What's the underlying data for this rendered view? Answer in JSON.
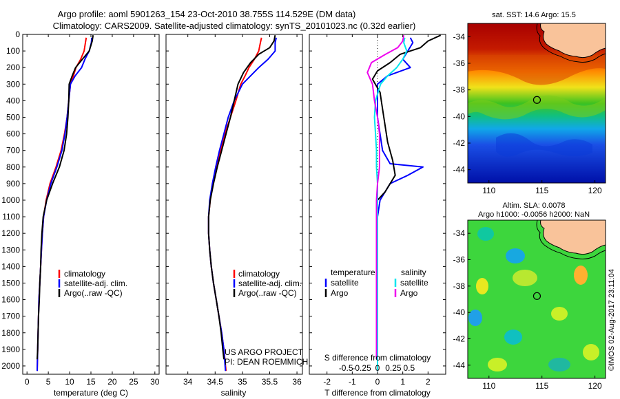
{
  "header": {
    "line1": "Argo profile: aoml 5901263_154 23-Oct-2010 38.755S 114.529E (DM data)",
    "line2": "Climatology: CARS2009. Satellite-adjusted climatology: synTS_20101023.nc (0.32d earlier)"
  },
  "colors": {
    "climatology": "#ff0000",
    "satellite": "#0000ff",
    "argo": "#000000",
    "satellite_s": "#00e5ee",
    "argo_s": "#ee00ee",
    "land": "#f9c39a"
  },
  "chart_data": [
    {
      "id": "temperature",
      "type": "line",
      "xlabel": "temperature (deg C)",
      "xlim": [
        -1,
        31
      ],
      "ylim": [
        2050,
        0
      ],
      "y_reversed": true,
      "xticks": [
        0,
        5,
        10,
        15,
        20,
        25,
        30
      ],
      "yticks": [
        0,
        100,
        200,
        300,
        400,
        500,
        600,
        700,
        800,
        900,
        1000,
        1100,
        1200,
        1300,
        1400,
        1500,
        1600,
        1700,
        1800,
        1900,
        2000
      ],
      "legend": [
        "climatology",
        "satellite-adj. clim.",
        "Argo(..raw -QC)"
      ],
      "series": [
        {
          "name": "climatology",
          "color": "#ff0000",
          "points": [
            [
              13.9,
              20
            ],
            [
              13.7,
              50
            ],
            [
              13.4,
              100
            ],
            [
              12.6,
              150
            ],
            [
              11.5,
              200
            ],
            [
              10.9,
              250
            ],
            [
              10.2,
              300
            ],
            [
              9.8,
              400
            ],
            [
              9.4,
              500
            ],
            [
              8.8,
              600
            ],
            [
              8.0,
              700
            ],
            [
              6.8,
              800
            ],
            [
              5.4,
              900
            ],
            [
              4.5,
              1000
            ],
            [
              3.9,
              1100
            ],
            [
              3.6,
              1200
            ],
            [
              3.4,
              1300
            ],
            [
              3.2,
              1400
            ],
            [
              3.0,
              1500
            ],
            [
              2.8,
              1600
            ],
            [
              2.7,
              1700
            ],
            [
              2.6,
              1800
            ],
            [
              2.5,
              1900
            ],
            [
              2.4,
              2030
            ]
          ]
        },
        {
          "name": "satellite-adj. clim.",
          "color": "#0000ff",
          "points": [
            [
              15.2,
              20
            ],
            [
              15.1,
              50
            ],
            [
              14.6,
              100
            ],
            [
              13.6,
              150
            ],
            [
              12.8,
              200
            ],
            [
              11.3,
              250
            ],
            [
              10.2,
              300
            ],
            [
              9.8,
              400
            ],
            [
              9.4,
              500
            ],
            [
              8.9,
              600
            ],
            [
              8.2,
              700
            ],
            [
              7.0,
              800
            ],
            [
              5.6,
              900
            ],
            [
              4.6,
              1000
            ],
            [
              3.9,
              1100
            ],
            [
              3.6,
              1200
            ],
            [
              3.4,
              1300
            ],
            [
              3.2,
              1400
            ],
            [
              3.0,
              1500
            ],
            [
              2.8,
              1600
            ],
            [
              2.7,
              1700
            ],
            [
              2.6,
              1800
            ],
            [
              2.5,
              1900
            ],
            [
              2.4,
              2030
            ]
          ]
        },
        {
          "name": "Argo(..raw -QC)",
          "color": "#000000",
          "points": [
            [
              15.5,
              5
            ],
            [
              15.3,
              40
            ],
            [
              14.6,
              100
            ],
            [
              13.0,
              150
            ],
            [
              11.4,
              200
            ],
            [
              10.6,
              250
            ],
            [
              9.9,
              300
            ],
            [
              9.8,
              400
            ],
            [
              9.6,
              500
            ],
            [
              9.3,
              600
            ],
            [
              8.7,
              700
            ],
            [
              7.6,
              800
            ],
            [
              6.0,
              900
            ],
            [
              4.6,
              1000
            ],
            [
              3.8,
              1100
            ],
            [
              3.5,
              1200
            ],
            [
              3.3,
              1300
            ],
            [
              3.2,
              1400
            ],
            [
              3.0,
              1500
            ],
            [
              2.9,
              1600
            ],
            [
              2.7,
              1700
            ],
            [
              2.6,
              1800
            ],
            [
              2.5,
              1900
            ],
            [
              2.4,
              1960
            ]
          ]
        }
      ]
    },
    {
      "id": "salinity",
      "type": "line",
      "xlabel": "salinity",
      "xlim": [
        33.6,
        36.1
      ],
      "ylim": [
        2050,
        0
      ],
      "y_reversed": true,
      "xticks": [
        34,
        34.5,
        35,
        35.5,
        36
      ],
      "legend": [
        "climatology",
        "satellite-adj. clim.",
        "Argo(..raw -QC)"
      ],
      "annotation": [
        "US ARGO PROJECT",
        "PI: DEAN ROEMMICH"
      ],
      "series": [
        {
          "name": "climatology",
          "color": "#ff0000",
          "points": [
            [
              35.35,
              20
            ],
            [
              35.33,
              50
            ],
            [
              35.3,
              100
            ],
            [
              35.22,
              150
            ],
            [
              35.12,
              200
            ],
            [
              35.05,
              250
            ],
            [
              34.97,
              300
            ],
            [
              34.88,
              400
            ],
            [
              34.78,
              500
            ],
            [
              34.68,
              600
            ],
            [
              34.6,
              700
            ],
            [
              34.52,
              800
            ],
            [
              34.45,
              900
            ],
            [
              34.41,
              1000
            ],
            [
              34.38,
              1100
            ],
            [
              34.38,
              1200
            ],
            [
              34.4,
              1300
            ],
            [
              34.43,
              1400
            ],
            [
              34.47,
              1500
            ],
            [
              34.52,
              1600
            ],
            [
              34.57,
              1700
            ],
            [
              34.62,
              1800
            ],
            [
              34.66,
              1900
            ],
            [
              34.7,
              2030
            ]
          ]
        },
        {
          "name": "satellite-adj. clim.",
          "color": "#0000ff",
          "points": [
            [
              35.62,
              20
            ],
            [
              35.6,
              50
            ],
            [
              35.6,
              100
            ],
            [
              35.47,
              150
            ],
            [
              35.3,
              200
            ],
            [
              35.15,
              250
            ],
            [
              35.0,
              300
            ],
            [
              34.85,
              400
            ],
            [
              34.74,
              500
            ],
            [
              34.66,
              600
            ],
            [
              34.58,
              700
            ],
            [
              34.51,
              800
            ],
            [
              34.45,
              900
            ],
            [
              34.4,
              1000
            ],
            [
              34.38,
              1100
            ],
            [
              34.38,
              1200
            ],
            [
              34.4,
              1300
            ],
            [
              34.43,
              1400
            ],
            [
              34.47,
              1500
            ],
            [
              34.52,
              1600
            ],
            [
              34.57,
              1700
            ],
            [
              34.62,
              1800
            ],
            [
              34.66,
              1900
            ],
            [
              34.69,
              2030
            ]
          ]
        },
        {
          "name": "Argo(..raw -QC)",
          "color": "#000000",
          "points": [
            [
              35.6,
              5
            ],
            [
              35.58,
              40
            ],
            [
              35.5,
              80
            ],
            [
              35.3,
              120
            ],
            [
              35.15,
              170
            ],
            [
              35.02,
              230
            ],
            [
              34.92,
              300
            ],
            [
              34.85,
              400
            ],
            [
              34.78,
              500
            ],
            [
              34.7,
              600
            ],
            [
              34.62,
              700
            ],
            [
              34.54,
              800
            ],
            [
              34.47,
              900
            ],
            [
              34.41,
              1000
            ],
            [
              34.38,
              1100
            ],
            [
              34.38,
              1200
            ],
            [
              34.4,
              1300
            ],
            [
              34.43,
              1400
            ],
            [
              34.47,
              1500
            ],
            [
              34.52,
              1600
            ],
            [
              34.57,
              1700
            ],
            [
              34.61,
              1800
            ],
            [
              34.64,
              1900
            ],
            [
              34.66,
              1960
            ]
          ]
        }
      ]
    },
    {
      "id": "difference",
      "type": "line",
      "xlabel": "T difference from climatology",
      "xlabel_top": "S difference from climatology",
      "xlim": [
        -2.7,
        2.7
      ],
      "ylim": [
        2050,
        0
      ],
      "y_reversed": true,
      "xticks": [
        -2,
        -1,
        0,
        1,
        2
      ],
      "xtick_labels_top": [
        "-0.5",
        "-0.25",
        "0",
        "0.25",
        "0.5"
      ],
      "legend_headers": [
        "temperature",
        "salinity"
      ],
      "legend": [
        "satellite",
        "Argo",
        "satellite",
        "Argo"
      ],
      "series": [
        {
          "name": "T satellite",
          "color": "#0000ff",
          "points": [
            [
              1.3,
              20
            ],
            [
              1.4,
              50
            ],
            [
              1.2,
              100
            ],
            [
              1.0,
              150
            ],
            [
              1.3,
              200
            ],
            [
              0.4,
              250
            ],
            [
              0.0,
              300
            ],
            [
              0.0,
              400
            ],
            [
              0.0,
              500
            ],
            [
              0.1,
              600
            ],
            [
              0.2,
              700
            ],
            [
              0.5,
              780
            ],
            [
              1.8,
              800
            ],
            [
              1.2,
              850
            ],
            [
              0.5,
              900
            ],
            [
              0.1,
              1000
            ],
            [
              0.0,
              1100
            ],
            [
              0.0,
              1200
            ],
            [
              0.0,
              1400
            ],
            [
              0.0,
              1600
            ],
            [
              0.0,
              1800
            ],
            [
              0.0,
              2030
            ]
          ]
        },
        {
          "name": "T Argo",
          "color": "#000000",
          "points": [
            [
              2.5,
              5
            ],
            [
              2.0,
              40
            ],
            [
              1.7,
              80
            ],
            [
              0.9,
              120
            ],
            [
              0.5,
              170
            ],
            [
              0.0,
              220
            ],
            [
              -0.2,
              270
            ],
            [
              0.1,
              350
            ],
            [
              0.2,
              450
            ],
            [
              0.3,
              550
            ],
            [
              0.4,
              650
            ],
            [
              0.6,
              760
            ],
            [
              0.7,
              850
            ],
            [
              0.3,
              950
            ],
            [
              0.0,
              1000
            ],
            [
              0.0,
              1200
            ],
            [
              0.0,
              1500
            ],
            [
              0.0,
              1800
            ],
            [
              0.0,
              1960
            ]
          ]
        },
        {
          "name": "S satellite",
          "color": "#00e5ee",
          "points": [
            [
              0.27,
              20
            ],
            [
              0.26,
              50
            ],
            [
              0.29,
              100
            ],
            [
              0.25,
              150
            ],
            [
              0.19,
              200
            ],
            [
              0.1,
              250
            ],
            [
              0.03,
              300
            ],
            [
              -0.02,
              400
            ],
            [
              -0.03,
              500
            ],
            [
              -0.02,
              600
            ],
            [
              -0.01,
              700
            ],
            [
              -0.01,
              800
            ],
            [
              0.0,
              900
            ],
            [
              0.0,
              1000
            ],
            [
              0.0,
              1200
            ],
            [
              0.0,
              1400
            ],
            [
              0.0,
              1600
            ],
            [
              0.0,
              1800
            ],
            [
              0.0,
              2030
            ]
          ]
        },
        {
          "name": "S Argo",
          "color": "#ee00ee",
          "points": [
            [
              0.26,
              5
            ],
            [
              0.25,
              40
            ],
            [
              0.2,
              80
            ],
            [
              0.08,
              120
            ],
            [
              -0.06,
              170
            ],
            [
              -0.1,
              230
            ],
            [
              -0.05,
              300
            ],
            [
              -0.03,
              400
            ],
            [
              0.0,
              500
            ],
            [
              0.02,
              600
            ],
            [
              0.02,
              700
            ],
            [
              0.02,
              800
            ],
            [
              0.0,
              900
            ],
            [
              -0.01,
              1000
            ],
            [
              -0.01,
              1100
            ],
            [
              -0.01,
              1200
            ],
            [
              -0.01,
              1400
            ],
            [
              -0.01,
              1600
            ],
            [
              -0.01,
              1800
            ],
            [
              -0.01,
              1960
            ]
          ]
        }
      ]
    },
    {
      "id": "sst_map",
      "type": "heatmap",
      "title": "sat. SST: 14.6 Argo: 15.5",
      "xlim": [
        108,
        121
      ],
      "ylim": [
        -45,
        -33
      ],
      "xticks": [
        110,
        115,
        120
      ],
      "yticks": [
        -34,
        -36,
        -38,
        -40,
        -42,
        -44
      ],
      "marker": [
        114.529,
        -38.755
      ]
    },
    {
      "id": "sla_map",
      "type": "heatmap",
      "title_lines": [
        "Altim. SLA: 0.0078",
        "Argo h1000: -0.0056 h2000: NaN"
      ],
      "xlim": [
        108,
        121
      ],
      "ylim": [
        -45,
        -33
      ],
      "xticks": [
        110,
        115,
        120
      ],
      "yticks": [
        -34,
        -36,
        -38,
        -40,
        -42,
        -44
      ],
      "marker": [
        114.529,
        -38.755
      ]
    }
  ],
  "credit": "©IMOS 02-Aug-2017 23:11:04"
}
